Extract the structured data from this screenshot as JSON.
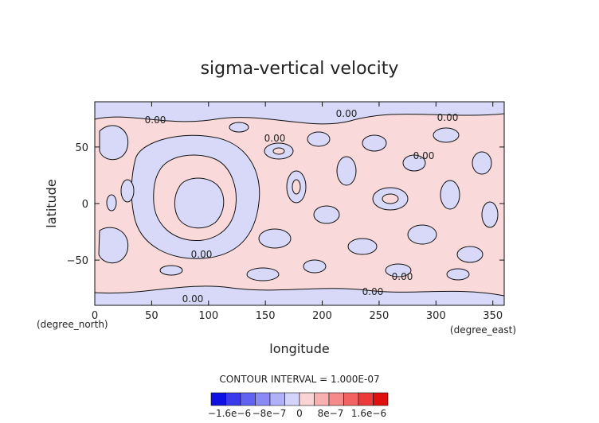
{
  "chart_data": {
    "type": "heatmap",
    "title": "sigma-vertical velocity",
    "xlabel": "longitude",
    "ylabel": "latitude",
    "x_unit": "(degree_east)",
    "y_unit": "(degree_north)",
    "xlim": [
      0,
      360
    ],
    "ylim": [
      -90,
      90
    ],
    "x_ticks": [
      0,
      50,
      100,
      150,
      200,
      250,
      300,
      350
    ],
    "y_ticks": [
      -50,
      0,
      50
    ],
    "contour_interval_text": "CONTOUR INTERVAL = 1.000E-07",
    "contour_labels": [
      "0.00",
      "0.00",
      "0.00",
      "0.00",
      "0.00",
      "0.00",
      "0.00",
      "0.00",
      "0.00"
    ],
    "colorbar": {
      "colors": [
        "#1010e0",
        "#3a3aec",
        "#6262f2",
        "#8a8af6",
        "#b0b0f8",
        "#d4d4fa",
        "#fad4d4",
        "#f8b0b0",
        "#f68a8a",
        "#f26262",
        "#ec3a3a",
        "#e01010"
      ],
      "tick_labels": [
        "−1.6e−6",
        "−8e−7",
        "0",
        "8e−7",
        "1.6e−6"
      ]
    },
    "field_colors": {
      "negative": "#d8d8f8",
      "positive": "#f9d9d9"
    }
  }
}
